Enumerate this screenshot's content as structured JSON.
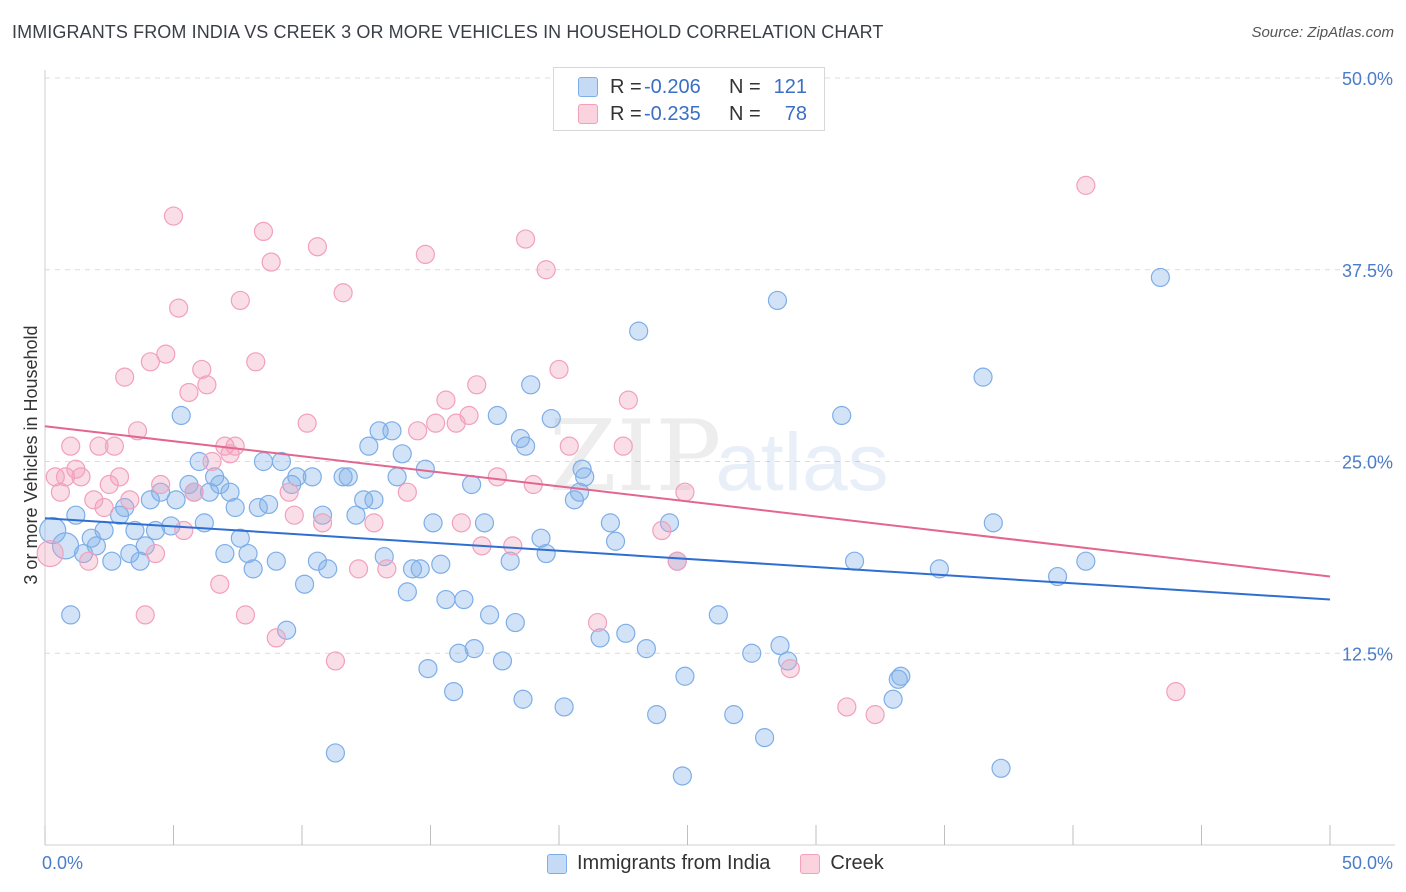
{
  "title": "IMMIGRANTS FROM INDIA VS CREEK 3 OR MORE VEHICLES IN HOUSEHOLD CORRELATION CHART",
  "source": "Source: ZipAtlas.com",
  "watermark": {
    "zip": "ZIP",
    "atlas": "atlas"
  },
  "legend": [
    {
      "r_label": "R =",
      "r_value": "-0.206",
      "n_label": "N =",
      "n_value": "121",
      "color": "#7eaee8"
    },
    {
      "r_label": "R =",
      "r_value": "-0.235",
      "n_label": "N =",
      "n_value": "78",
      "color": "#f2a0bb"
    }
  ],
  "bottom_legend": [
    {
      "label": "Immigrants from India",
      "color": "#7eaee8"
    },
    {
      "label": "Creek",
      "color": "#f2a0bb"
    }
  ],
  "chart_data": {
    "type": "scatter",
    "title": "IMMIGRANTS FROM INDIA VS CREEK 3 OR MORE VEHICLES IN HOUSEHOLD CORRELATION CHART",
    "xlabel": "",
    "ylabel": "3 or more Vehicles in Household",
    "xlim": [
      0,
      50
    ],
    "ylim": [
      0,
      50
    ],
    "x_tick_labels": [
      "0.0%",
      "50.0%"
    ],
    "y_ticks": [
      12.5,
      25.0,
      37.5,
      50.0
    ],
    "y_tick_labels": [
      "12.5%",
      "25.0%",
      "37.5%",
      "50.0%"
    ],
    "grid": true,
    "series": [
      {
        "name": "Immigrants from India",
        "color": "#7eaee8",
        "line_color": "#2f6fd1",
        "trend": {
          "x": [
            0,
            50
          ],
          "y": [
            21.3,
            16.0
          ]
        },
        "points": [
          [
            0.3,
            20.5
          ],
          [
            0.8,
            19.5
          ],
          [
            1.0,
            15.0
          ],
          [
            1.2,
            21.5
          ],
          [
            1.5,
            19.0
          ],
          [
            1.8,
            20.0
          ],
          [
            2.0,
            19.5
          ],
          [
            2.3,
            20.5
          ],
          [
            2.6,
            18.5
          ],
          [
            2.9,
            21.5
          ],
          [
            3.1,
            22.0
          ],
          [
            3.3,
            19.0
          ],
          [
            3.5,
            20.5
          ],
          [
            3.7,
            18.5
          ],
          [
            3.9,
            19.5
          ],
          [
            4.1,
            22.5
          ],
          [
            4.3,
            20.5
          ],
          [
            4.5,
            23.0
          ],
          [
            4.9,
            20.8
          ],
          [
            5.1,
            22.5
          ],
          [
            5.3,
            28.0
          ],
          [
            5.6,
            23.5
          ],
          [
            5.8,
            23.0
          ],
          [
            6.0,
            25.0
          ],
          [
            6.2,
            21.0
          ],
          [
            6.4,
            23.0
          ],
          [
            6.6,
            24.0
          ],
          [
            6.8,
            23.5
          ],
          [
            7.0,
            19.0
          ],
          [
            7.2,
            23.0
          ],
          [
            7.4,
            22.0
          ],
          [
            7.6,
            20.0
          ],
          [
            7.9,
            19.0
          ],
          [
            8.1,
            18.0
          ],
          [
            8.3,
            22.0
          ],
          [
            8.5,
            25.0
          ],
          [
            8.7,
            22.2
          ],
          [
            9.0,
            18.5
          ],
          [
            9.2,
            25.0
          ],
          [
            9.4,
            14.0
          ],
          [
            9.6,
            23.5
          ],
          [
            9.8,
            24.0
          ],
          [
            10.1,
            17.0
          ],
          [
            10.4,
            24.0
          ],
          [
            10.6,
            18.5
          ],
          [
            10.8,
            21.5
          ],
          [
            11.0,
            18.0
          ],
          [
            11.3,
            6.0
          ],
          [
            11.6,
            24.0
          ],
          [
            11.8,
            24.0
          ],
          [
            12.1,
            21.5
          ],
          [
            12.4,
            22.5
          ],
          [
            12.6,
            26.0
          ],
          [
            12.8,
            22.5
          ],
          [
            13.0,
            27.0
          ],
          [
            13.2,
            18.8
          ],
          [
            13.5,
            27.0
          ],
          [
            13.7,
            24.0
          ],
          [
            13.9,
            25.5
          ],
          [
            14.1,
            16.5
          ],
          [
            14.3,
            18.0
          ],
          [
            14.6,
            18.0
          ],
          [
            14.8,
            24.5
          ],
          [
            15.1,
            21.0
          ],
          [
            15.4,
            18.3
          ],
          [
            15.6,
            16.0
          ],
          [
            15.9,
            10.0
          ],
          [
            16.1,
            12.5
          ],
          [
            16.3,
            16.0
          ],
          [
            16.6,
            23.5
          ],
          [
            16.7,
            12.8
          ],
          [
            17.1,
            21.0
          ],
          [
            17.3,
            15.0
          ],
          [
            17.6,
            28.0
          ],
          [
            17.8,
            12.0
          ],
          [
            18.1,
            18.5
          ],
          [
            18.3,
            14.5
          ],
          [
            18.5,
            26.5
          ],
          [
            18.7,
            26.0
          ],
          [
            18.9,
            30.0
          ],
          [
            19.3,
            20.0
          ],
          [
            19.5,
            19.0
          ],
          [
            19.7,
            27.8
          ],
          [
            20.2,
            9.0
          ],
          [
            20.6,
            22.5
          ],
          [
            20.8,
            23.0
          ],
          [
            20.9,
            24.5
          ],
          [
            21.6,
            13.5
          ],
          [
            22.0,
            21.0
          ],
          [
            22.2,
            19.8
          ],
          [
            22.6,
            13.8
          ],
          [
            23.1,
            33.5
          ],
          [
            23.4,
            12.8
          ],
          [
            23.8,
            8.5
          ],
          [
            24.3,
            21.0
          ],
          [
            24.6,
            18.5
          ],
          [
            24.8,
            4.5
          ],
          [
            24.9,
            11.0
          ],
          [
            26.2,
            15.0
          ],
          [
            26.8,
            8.5
          ],
          [
            27.5,
            12.5
          ],
          [
            28.0,
            7.0
          ],
          [
            28.5,
            35.5
          ],
          [
            28.6,
            13.0
          ],
          [
            28.9,
            12.0
          ],
          [
            31.0,
            28.0
          ],
          [
            31.5,
            18.5
          ],
          [
            33.0,
            9.5
          ],
          [
            33.2,
            10.8
          ],
          [
            33.3,
            11.0
          ],
          [
            34.8,
            18.0
          ],
          [
            36.5,
            30.5
          ],
          [
            36.9,
            21.0
          ],
          [
            37.2,
            5.0
          ],
          [
            39.4,
            17.5
          ],
          [
            40.5,
            18.5
          ],
          [
            43.4,
            37.0
          ],
          [
            21.0,
            24.0
          ],
          [
            18.6,
            9.5
          ],
          [
            14.9,
            11.5
          ]
        ]
      },
      {
        "name": "Creek",
        "color": "#f2a0bb",
        "line_color": "#e3668f",
        "trend": {
          "x": [
            0,
            50
          ],
          "y": [
            27.3,
            17.5
          ]
        },
        "points": [
          [
            0.2,
            19.0
          ],
          [
            0.4,
            24.0
          ],
          [
            0.6,
            23.0
          ],
          [
            0.8,
            24.0
          ],
          [
            1.0,
            26.0
          ],
          [
            1.2,
            24.5
          ],
          [
            1.4,
            24.0
          ],
          [
            1.7,
            18.5
          ],
          [
            1.9,
            22.5
          ],
          [
            2.1,
            26.0
          ],
          [
            2.3,
            22.0
          ],
          [
            2.5,
            23.5
          ],
          [
            2.7,
            26.0
          ],
          [
            2.9,
            24.0
          ],
          [
            3.1,
            30.5
          ],
          [
            3.3,
            22.5
          ],
          [
            3.6,
            27.0
          ],
          [
            3.9,
            15.0
          ],
          [
            4.1,
            31.5
          ],
          [
            4.3,
            19.0
          ],
          [
            4.5,
            23.5
          ],
          [
            4.7,
            32.0
          ],
          [
            5.0,
            41.0
          ],
          [
            5.2,
            35.0
          ],
          [
            5.4,
            20.5
          ],
          [
            5.6,
            29.5
          ],
          [
            5.8,
            23.0
          ],
          [
            6.1,
            31.0
          ],
          [
            6.3,
            30.0
          ],
          [
            6.5,
            25.0
          ],
          [
            6.8,
            17.0
          ],
          [
            7.0,
            26.0
          ],
          [
            7.2,
            25.5
          ],
          [
            7.4,
            26.0
          ],
          [
            7.6,
            35.5
          ],
          [
            7.8,
            15.0
          ],
          [
            8.2,
            31.5
          ],
          [
            8.5,
            40.0
          ],
          [
            8.8,
            38.0
          ],
          [
            9.0,
            13.5
          ],
          [
            9.5,
            23.0
          ],
          [
            9.7,
            21.5
          ],
          [
            10.2,
            27.5
          ],
          [
            10.6,
            39.0
          ],
          [
            10.8,
            21.0
          ],
          [
            11.3,
            12.0
          ],
          [
            11.6,
            36.0
          ],
          [
            12.2,
            18.0
          ],
          [
            12.8,
            21.0
          ],
          [
            13.3,
            18.0
          ],
          [
            14.1,
            23.0
          ],
          [
            14.5,
            27.0
          ],
          [
            14.8,
            38.5
          ],
          [
            15.2,
            27.5
          ],
          [
            15.6,
            29.0
          ],
          [
            16.0,
            27.5
          ],
          [
            16.2,
            21.0
          ],
          [
            16.5,
            28.0
          ],
          [
            16.8,
            30.0
          ],
          [
            17.0,
            19.5
          ],
          [
            17.6,
            24.0
          ],
          [
            18.2,
            19.5
          ],
          [
            18.7,
            39.5
          ],
          [
            19.0,
            23.5
          ],
          [
            19.5,
            37.5
          ],
          [
            20.0,
            31.0
          ],
          [
            20.4,
            26.0
          ],
          [
            21.5,
            14.5
          ],
          [
            22.5,
            26.0
          ],
          [
            22.7,
            29.0
          ],
          [
            24.0,
            20.5
          ],
          [
            24.6,
            18.5
          ],
          [
            24.9,
            23.0
          ],
          [
            29.0,
            11.5
          ],
          [
            31.2,
            9.0
          ],
          [
            32.3,
            8.5
          ],
          [
            40.5,
            43.0
          ],
          [
            44.0,
            10.0
          ]
        ]
      }
    ]
  }
}
